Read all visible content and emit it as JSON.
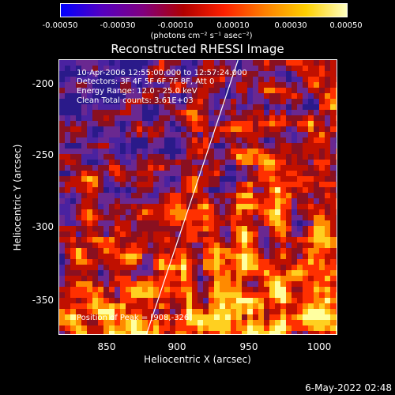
{
  "colorbar": {
    "ticks": [
      "-0.00050",
      "-0.00030",
      "-0.00010",
      "0.00010",
      "0.00030",
      "0.00050"
    ],
    "units": "(photons cm⁻² s⁻¹ asec⁻²)",
    "colors": [
      "#0000ff",
      "#5500c0",
      "#800080",
      "#b00000",
      "#ff2000",
      "#ff8000",
      "#ffd000",
      "#ffffc0"
    ]
  },
  "plot": {
    "title": "Reconstructed RHESSI Image",
    "annotations": [
      "10-Apr-2006 12:55:00.000 to 12:57:24.000",
      "Detectors: 3F 4F 5F 6F 7F 8F, Att 0",
      "Energy Range: 12.0 - 25.0 keV",
      "Clean    Total counts: 3.61E+03"
    ],
    "peak_label": "Position of Peak = [908,-326]",
    "xlabel": "Heliocentric X (arcsec)",
    "ylabel": "Heliocentric Y (arcsec)",
    "xticks": [
      "850",
      "900",
      "950",
      "1000"
    ],
    "xtick_values": [
      850,
      900,
      950,
      1000
    ],
    "yticks": [
      "-200",
      "-250",
      "-300",
      "-350"
    ],
    "ytick_values": [
      -200,
      -250,
      -300,
      -350
    ],
    "xlim": [
      818,
      1015
    ],
    "ylim": [
      -374,
      -180
    ],
    "limb_line": {
      "x1": 880,
      "y1": -374,
      "x2": 945,
      "y2": -180
    }
  },
  "timestamp": "6-May-2022 02:48"
}
